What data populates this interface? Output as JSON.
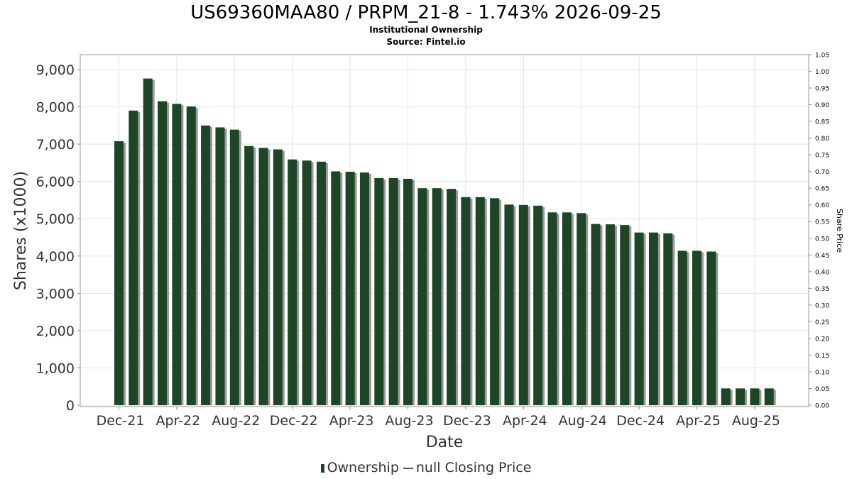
{
  "chart_data": {
    "type": "bar",
    "title": "US69360MAA80 / PRPM_21-8 - 1.743% 2026-09-25",
    "subtitle": "Institutional Ownership",
    "source": "Source: Fintel.io",
    "xlabel": "Date",
    "ylabel": "Shares (x1000)",
    "y2label": "Share Price",
    "ylim": [
      0,
      9400
    ],
    "y2lim": [
      0,
      1.05
    ],
    "yticks": [
      "0",
      "1,000",
      "2,000",
      "3,000",
      "4,000",
      "5,000",
      "6,000",
      "7,000",
      "8,000",
      "9,000"
    ],
    "y2ticks": [
      "0.00",
      "0.05",
      "0.10",
      "0.15",
      "0.20",
      "0.25",
      "0.30",
      "0.35",
      "0.40",
      "0.45",
      "0.50",
      "0.55",
      "0.60",
      "0.65",
      "0.70",
      "0.75",
      "0.80",
      "0.85",
      "0.90",
      "0.95",
      "1.00",
      "1.05"
    ],
    "xticks": [
      "Dec-21",
      "Apr-22",
      "Aug-22",
      "Dec-22",
      "Apr-23",
      "Aug-23",
      "Dec-23",
      "Apr-24",
      "Aug-24",
      "Dec-24",
      "Apr-25",
      "Aug-25"
    ],
    "grid": true,
    "series": [
      {
        "name": "Ownership",
        "color": "#1e4526",
        "values": [
          7080,
          7900,
          8760,
          8150,
          8080,
          8010,
          7500,
          7450,
          7390,
          6950,
          6900,
          6860,
          6590,
          6560,
          6530,
          6270,
          6260,
          6240,
          6090,
          6090,
          6070,
          5820,
          5820,
          5800,
          5580,
          5580,
          5550,
          5380,
          5370,
          5350,
          5170,
          5170,
          5150,
          4860,
          4850,
          4830,
          4630,
          4630,
          4610,
          4140,
          4140,
          4120,
          450,
          450,
          450,
          450
        ]
      }
    ],
    "legend": {
      "position": "bottom",
      "ownership_label": "Ownership",
      "price_label": "null Closing Price"
    }
  }
}
